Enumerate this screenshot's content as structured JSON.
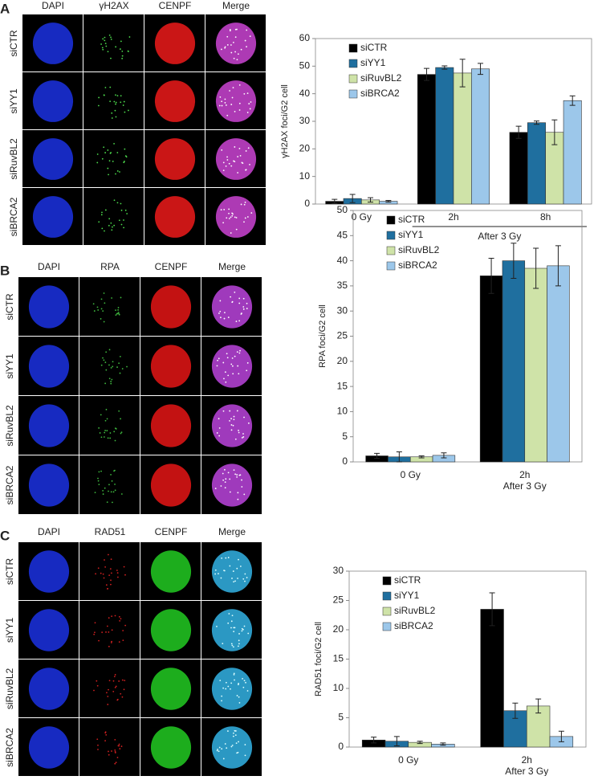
{
  "panels": [
    {
      "letter": "A",
      "columns": [
        "DAPI",
        "γH2AX",
        "CENPF",
        "Merge"
      ],
      "rows": [
        "siCTR",
        "siYY1",
        "siRuvBL2",
        "siBRCA2"
      ]
    },
    {
      "letter": "B",
      "columns": [
        "DAPI",
        "RPA",
        "CENPF",
        "Merge"
      ],
      "rows": [
        "siCTR",
        "siYY1",
        "siRuvBL2",
        "siBRCA2"
      ]
    },
    {
      "letter": "C",
      "columns": [
        "DAPI",
        "RAD51",
        "CENPF",
        "Merge"
      ],
      "rows": [
        "siCTR",
        "siYY1",
        "siRuvBL2",
        "siBRCA2"
      ]
    }
  ],
  "chart_data": [
    {
      "type": "bar",
      "y_label": "γH2AX foci/G2 cell",
      "categories": [
        "0 Gy",
        "2h",
        "8h"
      ],
      "group_label": "After 3 Gy",
      "group_line": true,
      "ylim": [
        0,
        60
      ],
      "yticks": [
        0,
        10,
        20,
        30,
        40,
        50,
        60
      ],
      "legend": "top-left",
      "series": [
        {
          "name": "siCTR",
          "color": "#000000",
          "values": [
            1,
            47,
            26
          ],
          "errors": [
            0.7,
            2.2,
            2.2
          ]
        },
        {
          "name": "siYY1",
          "color": "#1f6f9f",
          "values": [
            2,
            49.5,
            29.5
          ],
          "errors": [
            1.5,
            0.6,
            0.6
          ]
        },
        {
          "name": "siRuvBL2",
          "color": "#cfe3a8",
          "values": [
            1.5,
            47.5,
            26
          ],
          "errors": [
            0.8,
            5,
            4.5
          ]
        },
        {
          "name": "siBRCA2",
          "color": "#9cc7ea",
          "values": [
            1,
            49,
            37.5
          ],
          "errors": [
            0.3,
            2,
            1.7
          ]
        }
      ]
    },
    {
      "type": "bar",
      "y_label": "RPA foci/G2 cell",
      "categories": [
        "0 Gy",
        "2h"
      ],
      "group_label": "After 3 Gy",
      "group_line": false,
      "ylim": [
        0,
        50
      ],
      "yticks": [
        0,
        5,
        10,
        15,
        20,
        25,
        30,
        35,
        40,
        45,
        50
      ],
      "legend": "top-left",
      "series": [
        {
          "name": "siCTR",
          "color": "#000000",
          "values": [
            1.2,
            37
          ],
          "errors": [
            0.5,
            3.5
          ]
        },
        {
          "name": "siYY1",
          "color": "#1f6f9f",
          "values": [
            1,
            40
          ],
          "errors": [
            1,
            3.5
          ]
        },
        {
          "name": "siRuvBL2",
          "color": "#cfe3a8",
          "values": [
            1,
            38.5
          ],
          "errors": [
            0.2,
            4
          ]
        },
        {
          "name": "siBRCA2",
          "color": "#9cc7ea",
          "values": [
            1.3,
            39
          ],
          "errors": [
            0.5,
            4
          ]
        }
      ]
    },
    {
      "type": "bar",
      "y_label": "RAD51 foci/G2 cell",
      "categories": [
        "0 Gy",
        "2h"
      ],
      "group_label": "After 3 Gy",
      "group_line": false,
      "ylim": [
        0,
        30
      ],
      "yticks": [
        0,
        5,
        10,
        15,
        20,
        25,
        30
      ],
      "legend": "top-left",
      "series": [
        {
          "name": "siCTR",
          "color": "#000000",
          "values": [
            1.2,
            23.5
          ],
          "errors": [
            0.5,
            2.8
          ]
        },
        {
          "name": "siYY1",
          "color": "#1f6f9f",
          "values": [
            1,
            6.2
          ],
          "errors": [
            0.8,
            1.3
          ]
        },
        {
          "name": "siRuvBL2",
          "color": "#cfe3a8",
          "values": [
            0.8,
            7
          ],
          "errors": [
            0.2,
            1.2
          ]
        },
        {
          "name": "siBRCA2",
          "color": "#9cc7ea",
          "values": [
            0.5,
            1.8
          ],
          "errors": [
            0.2,
            0.9
          ]
        }
      ]
    }
  ]
}
